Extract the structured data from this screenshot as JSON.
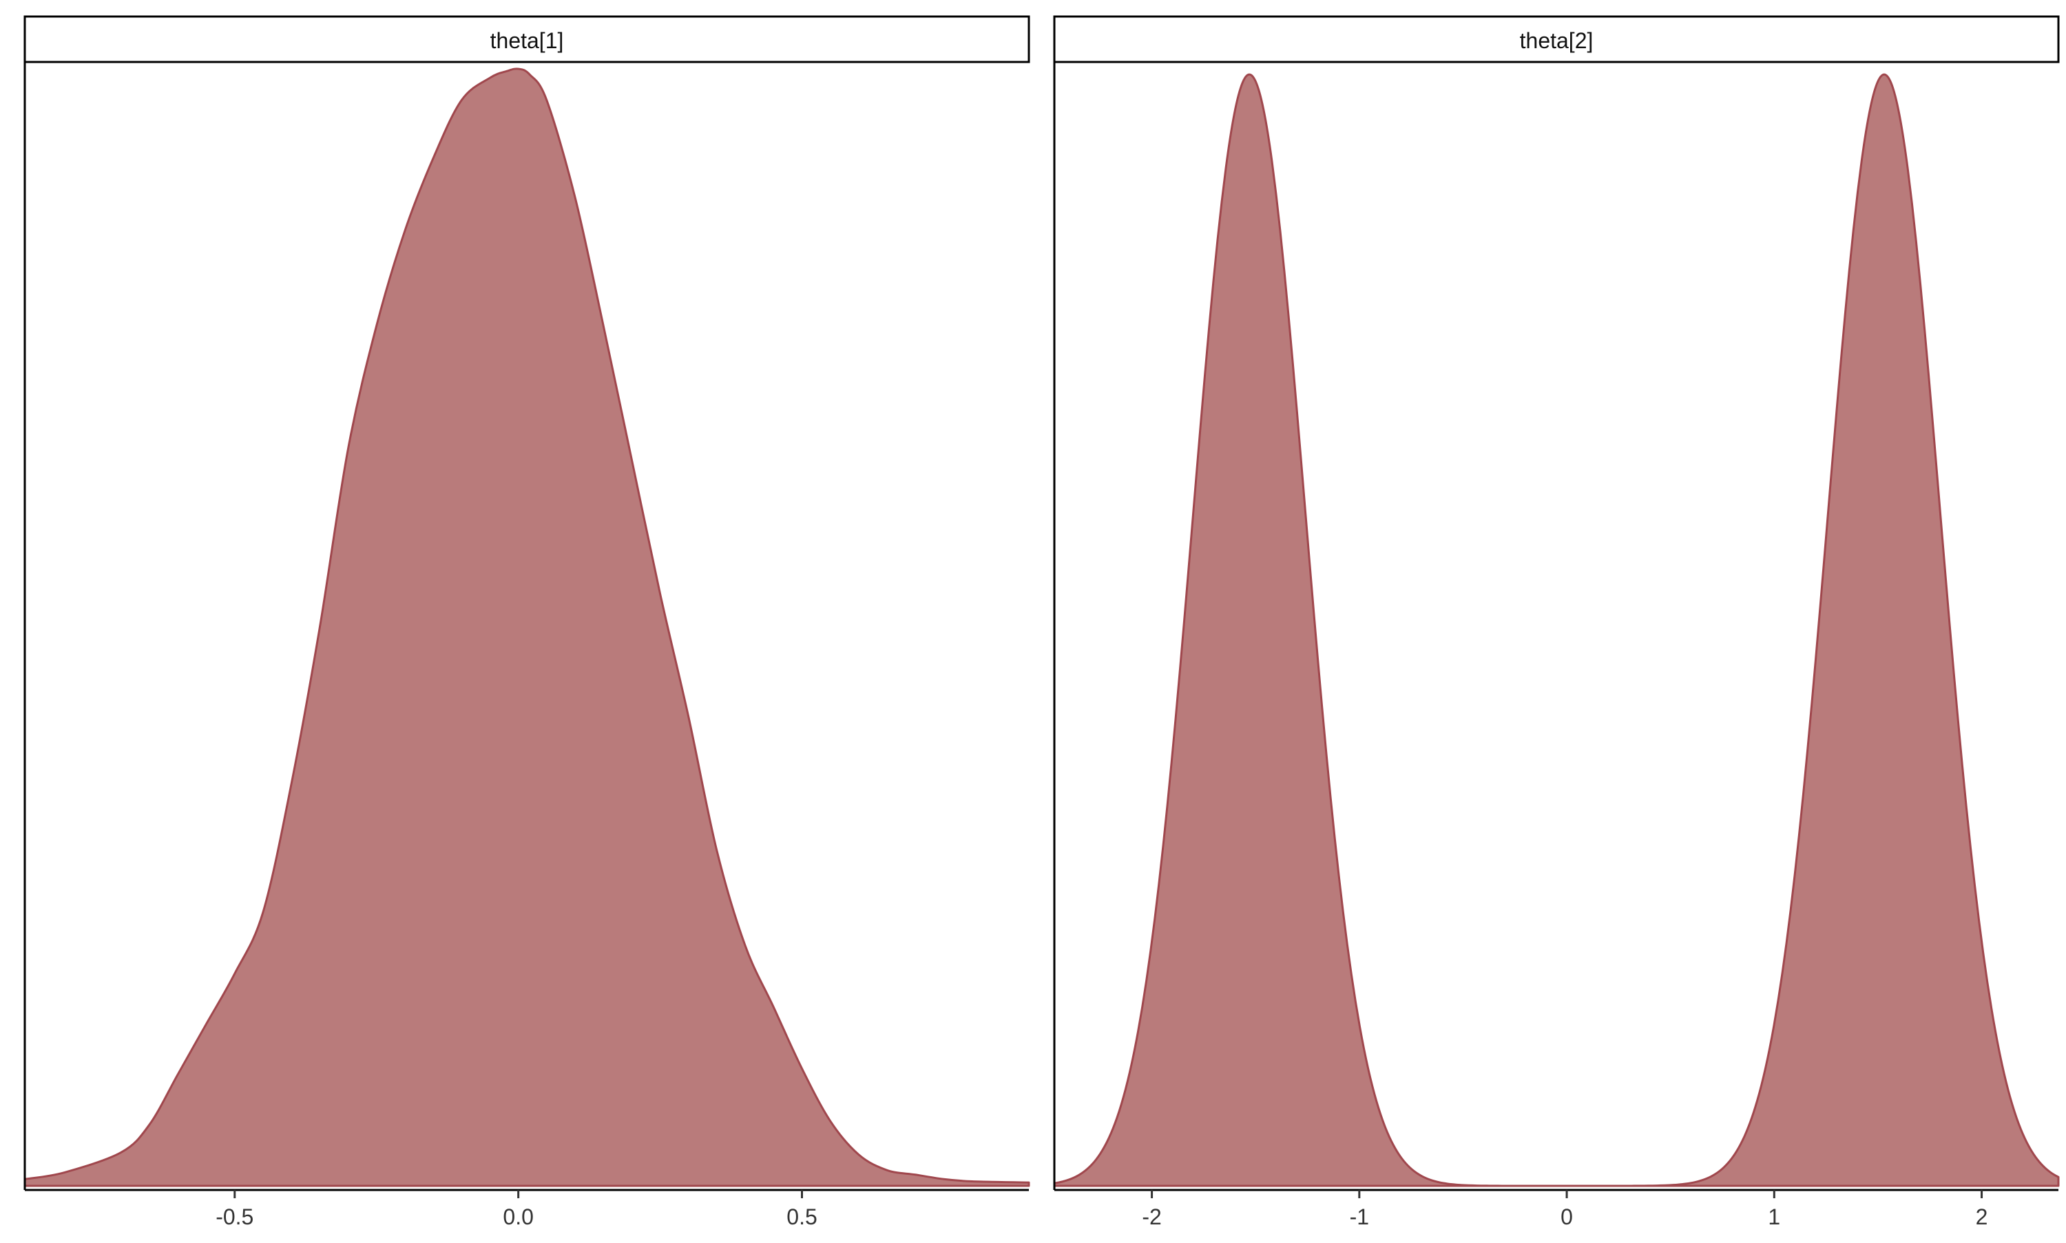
{
  "chart_data": [
    {
      "type": "area",
      "panel_label": "theta[1]",
      "xlim": [
        -0.87,
        0.9
      ],
      "x_ticks": [
        -0.5,
        0.0,
        0.5
      ],
      "x_tick_labels": [
        "-0.5",
        "0.0",
        "0.5"
      ],
      "fill_color": "#b97b7b",
      "line_color": "#a0474d",
      "density": {
        "x": [
          -0.87,
          -0.8,
          -0.7,
          -0.65,
          -0.6,
          -0.55,
          -0.5,
          -0.45,
          -0.4,
          -0.35,
          -0.3,
          -0.25,
          -0.2,
          -0.15,
          -0.1,
          -0.05,
          -0.02,
          0.0,
          0.02,
          0.05,
          0.1,
          0.15,
          0.2,
          0.25,
          0.3,
          0.35,
          0.4,
          0.45,
          0.5,
          0.55,
          0.6,
          0.65,
          0.7,
          0.75,
          0.8,
          0.9
        ],
        "y": [
          0.006,
          0.012,
          0.03,
          0.055,
          0.1,
          0.145,
          0.19,
          0.245,
          0.36,
          0.5,
          0.66,
          0.77,
          0.855,
          0.92,
          0.972,
          0.992,
          0.998,
          1.0,
          0.995,
          0.972,
          0.885,
          0.77,
          0.65,
          0.53,
          0.42,
          0.3,
          0.215,
          0.16,
          0.105,
          0.058,
          0.028,
          0.014,
          0.01,
          0.006,
          0.004,
          0.003
        ]
      }
    },
    {
      "type": "area",
      "panel_label": "theta[2]",
      "xlim": [
        -2.47,
        2.37
      ],
      "x_ticks": [
        -2,
        -1,
        0,
        1,
        2
      ],
      "x_tick_labels": [
        "-2",
        "-1",
        "0",
        "1",
        "2"
      ],
      "fill_color": "#b97b7b",
      "line_color": "#a0474d",
      "mode_centers": [
        -1.53,
        1.53
      ],
      "mode_sd": 0.27,
      "mode_peak": 0.995
    }
  ]
}
